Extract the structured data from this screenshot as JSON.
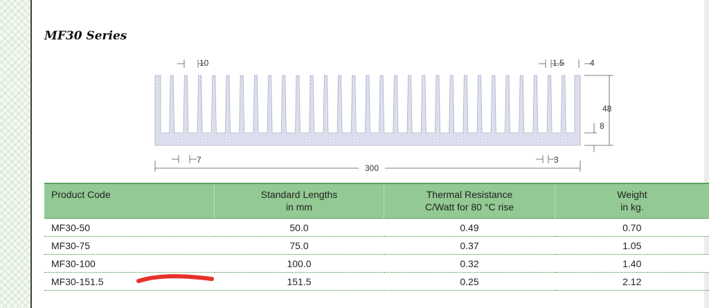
{
  "series_title": "MF30 Series",
  "drawing": {
    "dims": {
      "fin_pitch": "10",
      "fin_tip": "1.5",
      "end_fin": "4",
      "height": "48",
      "base": "8",
      "fin_root": "7",
      "end_root": "3",
      "width": "300"
    }
  },
  "table": {
    "headers": [
      {
        "line1": "Product Code",
        "line2": ""
      },
      {
        "line1": "Standard Lengths",
        "line2": "in mm"
      },
      {
        "line1": "Thermal Resistance",
        "line2": "C/Watt for 80 °C rise"
      },
      {
        "line1": "Weight",
        "line2": "in kg."
      }
    ],
    "rows": [
      [
        "MF30-50",
        "50.0",
        "0.49",
        "0.70"
      ],
      [
        "MF30-75",
        "75.0",
        "0.37",
        "1.05"
      ],
      [
        "MF30-100",
        "100.0",
        "0.32",
        "1.40"
      ],
      [
        "MF30-151.5",
        "151.5",
        "0.25",
        "2.12"
      ]
    ]
  },
  "colors": {
    "header_green": "#93c993",
    "annotation_red": "#e8302a"
  }
}
